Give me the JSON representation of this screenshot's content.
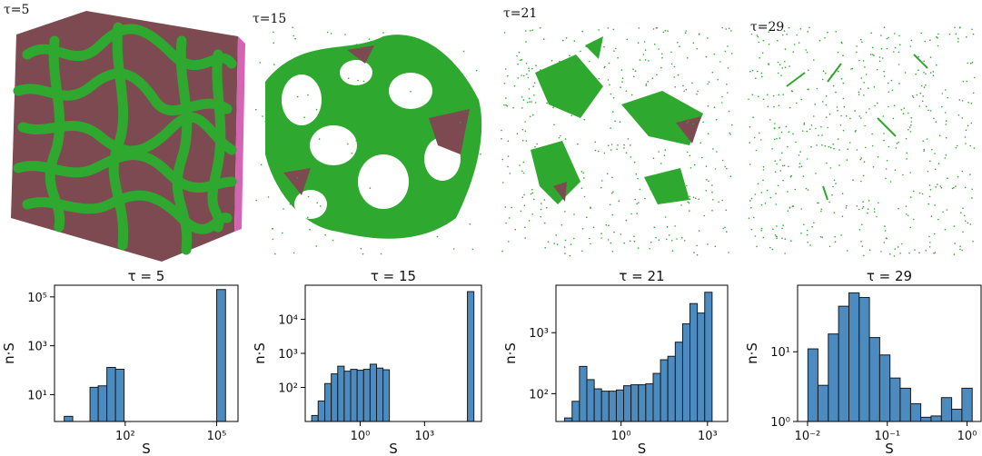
{
  "renders": [
    {
      "label": "τ=5"
    },
    {
      "label": "τ=15"
    },
    {
      "label": "τ=21"
    },
    {
      "label": "τ=29"
    }
  ],
  "colors": {
    "bar_fill": "#4c8bbf",
    "bar_edge": "#1a1a1a",
    "surface_green": "#2ea82e",
    "surface_maroon": "#7d4a52",
    "surface_pink": "#d464b4"
  },
  "chart_data": [
    {
      "type": "bar",
      "title": "τ = 5",
      "xlabel": "S",
      "ylabel": "n·S",
      "xscale": "log",
      "yscale": "log",
      "xlim": [
        0.48,
        500000
      ],
      "ylim": [
        0.8,
        300000
      ],
      "xticks": [
        {
          "value": 100,
          "label": "10²"
        },
        {
          "value": 100000,
          "label": "10⁵"
        }
      ],
      "yticks": [
        {
          "value": 10,
          "label": "10¹"
        },
        {
          "value": 1000,
          "label": "10³"
        },
        {
          "value": 100000,
          "label": "10⁵"
        }
      ],
      "bars": [
        {
          "x0": 1.0,
          "x1": 1.9,
          "value": 1.3
        },
        {
          "x0": 7.0,
          "x1": 13.0,
          "value": 20
        },
        {
          "x0": 13.0,
          "x1": 25.0,
          "value": 23
        },
        {
          "x0": 25.0,
          "x1": 48.0,
          "value": 130
        },
        {
          "x0": 48.0,
          "x1": 92.0,
          "value": 110
        },
        {
          "x0": 100000,
          "x1": 195000,
          "value": 200000
        }
      ]
    },
    {
      "type": "bar",
      "title": "τ = 15",
      "xlabel": "S",
      "ylabel": "n·S",
      "xscale": "log",
      "yscale": "log",
      "xlim": [
        0.00275,
        450000
      ],
      "ylim": [
        10,
        100000
      ],
      "xticks": [
        {
          "value": 1,
          "label": "10⁰"
        },
        {
          "value": 1000,
          "label": "10³"
        }
      ],
      "yticks": [
        {
          "value": 100,
          "label": "10²"
        },
        {
          "value": 1000,
          "label": "10³"
        },
        {
          "value": 10000,
          "label": "10⁴"
        }
      ],
      "bars": [
        {
          "x0": 0.0055,
          "x1": 0.011,
          "value": 15
        },
        {
          "x0": 0.011,
          "x1": 0.0225,
          "value": 40
        },
        {
          "x0": 0.0225,
          "x1": 0.045,
          "value": 130
        },
        {
          "x0": 0.045,
          "x1": 0.09,
          "value": 250
        },
        {
          "x0": 0.09,
          "x1": 0.18,
          "value": 420
        },
        {
          "x0": 0.18,
          "x1": 0.36,
          "value": 300
        },
        {
          "x0": 0.36,
          "x1": 0.72,
          "value": 340
        },
        {
          "x0": 0.72,
          "x1": 1.45,
          "value": 320
        },
        {
          "x0": 1.45,
          "x1": 2.9,
          "value": 340
        },
        {
          "x0": 2.9,
          "x1": 5.8,
          "value": 480
        },
        {
          "x0": 5.8,
          "x1": 11.6,
          "value": 370
        },
        {
          "x0": 11.6,
          "x1": 23,
          "value": 330
        },
        {
          "x0": 100000,
          "x1": 200000,
          "value": 65000
        }
      ]
    },
    {
      "type": "bar",
      "title": "τ = 21",
      "xlabel": "S",
      "ylabel": "n·S",
      "xscale": "log",
      "yscale": "log",
      "xlim": [
        0.0055,
        5000
      ],
      "ylim": [
        35,
        6000
      ],
      "xticks": [
        {
          "value": 1,
          "label": "10⁰"
        },
        {
          "value": 1000,
          "label": "10³"
        }
      ],
      "yticks": [
        {
          "value": 100,
          "label": "10²"
        },
        {
          "value": 1000,
          "label": "10³"
        }
      ],
      "bars": [
        {
          "x0": 0.011,
          "x1": 0.02,
          "value": 40
        },
        {
          "x0": 0.02,
          "x1": 0.036,
          "value": 75
        },
        {
          "x0": 0.036,
          "x1": 0.065,
          "value": 280
        },
        {
          "x0": 0.065,
          "x1": 0.117,
          "value": 170
        },
        {
          "x0": 0.117,
          "x1": 0.21,
          "value": 120
        },
        {
          "x0": 0.21,
          "x1": 0.38,
          "value": 110
        },
        {
          "x0": 0.38,
          "x1": 0.685,
          "value": 110
        },
        {
          "x0": 0.685,
          "x1": 1.23,
          "value": 115
        },
        {
          "x0": 1.23,
          "x1": 2.22,
          "value": 135
        },
        {
          "x0": 2.22,
          "x1": 4.0,
          "value": 140
        },
        {
          "x0": 4.0,
          "x1": 7.2,
          "value": 140
        },
        {
          "x0": 7.2,
          "x1": 13,
          "value": 145
        },
        {
          "x0": 13,
          "x1": 23.4,
          "value": 215
        },
        {
          "x0": 23.4,
          "x1": 42,
          "value": 360
        },
        {
          "x0": 42,
          "x1": 76,
          "value": 410
        },
        {
          "x0": 76,
          "x1": 137,
          "value": 700
        },
        {
          "x0": 137,
          "x1": 246,
          "value": 1400
        },
        {
          "x0": 246,
          "x1": 443,
          "value": 3000
        },
        {
          "x0": 443,
          "x1": 800,
          "value": 2100
        },
        {
          "x0": 800,
          "x1": 1440,
          "value": 4600
        }
      ]
    },
    {
      "type": "bar",
      "title": "τ = 29",
      "xlabel": "S",
      "ylabel": "n·S",
      "xscale": "log",
      "yscale": "log",
      "xlim": [
        0.0075,
        1.5
      ],
      "ylim": [
        1,
        90
      ],
      "xticks": [
        {
          "value": 0.01,
          "label": "10⁻²"
        },
        {
          "value": 0.1,
          "label": "10⁻¹"
        },
        {
          "value": 1,
          "label": "10⁰"
        }
      ],
      "yticks": [
        {
          "value": 1,
          "label": "10⁰"
        },
        {
          "value": 10,
          "label": "10¹"
        }
      ],
      "bars": [
        {
          "x0": 0.0101,
          "x1": 0.0135,
          "value": 11
        },
        {
          "x0": 0.0135,
          "x1": 0.0182,
          "value": 3.3
        },
        {
          "x0": 0.0182,
          "x1": 0.0245,
          "value": 18
        },
        {
          "x0": 0.0245,
          "x1": 0.033,
          "value": 45
        },
        {
          "x0": 0.033,
          "x1": 0.0444,
          "value": 70
        },
        {
          "x0": 0.0444,
          "x1": 0.0597,
          "value": 60
        },
        {
          "x0": 0.0597,
          "x1": 0.0803,
          "value": 16
        },
        {
          "x0": 0.0803,
          "x1": 0.108,
          "value": 9
        },
        {
          "x0": 0.108,
          "x1": 0.145,
          "value": 4.2
        },
        {
          "x0": 0.145,
          "x1": 0.196,
          "value": 3.0
        },
        {
          "x0": 0.196,
          "x1": 0.263,
          "value": 1.8
        },
        {
          "x0": 0.263,
          "x1": 0.354,
          "value": 1.15
        },
        {
          "x0": 0.354,
          "x1": 0.477,
          "value": 1.2
        },
        {
          "x0": 0.477,
          "x1": 0.641,
          "value": 2.2
        },
        {
          "x0": 0.641,
          "x1": 0.862,
          "value": 1.5
        },
        {
          "x0": 0.862,
          "x1": 1.16,
          "value": 3.0
        }
      ]
    }
  ]
}
